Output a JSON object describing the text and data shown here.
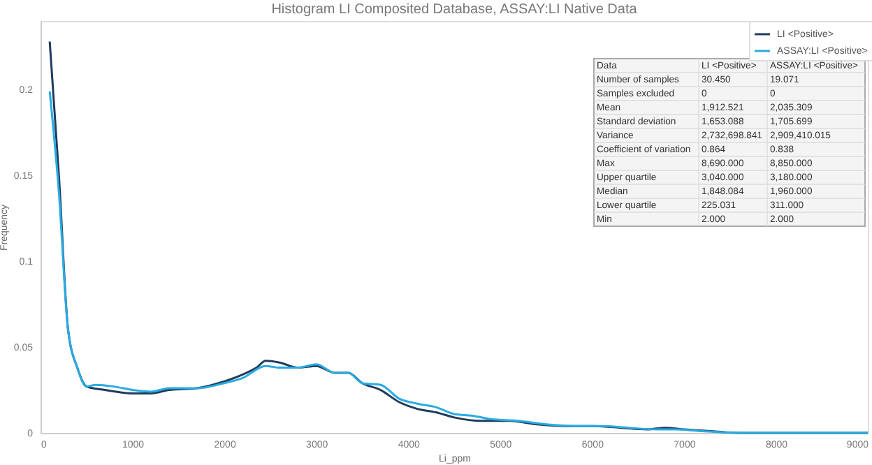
{
  "chart_data": {
    "type": "line",
    "title": "Histogram LI Composited Database, ASSAY:LI Native Data",
    "xlabel": "Li_ppm",
    "ylabel": "Frequency",
    "xlim": [
      0,
      9000
    ],
    "xticks": [
      0,
      1000,
      2000,
      3000,
      4000,
      5000,
      6000,
      7000,
      8000,
      9000
    ],
    "ylim": [
      0,
      0.24
    ],
    "yticks": [
      0,
      0.05,
      0.1,
      0.15,
      0.2
    ],
    "grid": false,
    "legend": "top right",
    "marker": "none",
    "line_style": "solid",
    "series": [
      {
        "name": "LI <Positive>",
        "color": "#1f3b5c",
        "x": [
          100,
          200,
          300,
          400,
          500,
          700,
          1000,
          1200,
          1400,
          1700,
          2000,
          2200,
          2350,
          2450,
          2600,
          2800,
          3000,
          3200,
          3350,
          3500,
          3700,
          3900,
          4100,
          4300,
          4500,
          4800,
          5100,
          5400,
          5700,
          6000,
          6300,
          6600,
          6800,
          7000,
          7300,
          7600,
          8000,
          9000
        ],
        "values": [
          0.228,
          0.15,
          0.06,
          0.038,
          0.027,
          0.025,
          0.023,
          0.023,
          0.025,
          0.026,
          0.03,
          0.034,
          0.038,
          0.042,
          0.041,
          0.038,
          0.039,
          0.035,
          0.035,
          0.029,
          0.025,
          0.018,
          0.014,
          0.012,
          0.009,
          0.007,
          0.007,
          0.005,
          0.004,
          0.004,
          0.003,
          0.002,
          0.003,
          0.002,
          0.001,
          0,
          0,
          0
        ]
      },
      {
        "name": "ASSAY:LI <Positive>",
        "color": "#29abe2",
        "x": [
          100,
          200,
          300,
          400,
          500,
          600,
          800,
          1000,
          1200,
          1400,
          1700,
          2000,
          2200,
          2450,
          2600,
          2800,
          3000,
          3200,
          3350,
          3500,
          3700,
          3900,
          4100,
          4300,
          4500,
          4700,
          4900,
          5200,
          5500,
          5800,
          6100,
          6400,
          6700,
          6900,
          7200,
          7600,
          8000,
          9000
        ],
        "values": [
          0.199,
          0.14,
          0.06,
          0.038,
          0.027,
          0.028,
          0.027,
          0.025,
          0.024,
          0.026,
          0.026,
          0.029,
          0.032,
          0.039,
          0.038,
          0.038,
          0.04,
          0.035,
          0.035,
          0.029,
          0.028,
          0.02,
          0.017,
          0.015,
          0.011,
          0.01,
          0.008,
          0.007,
          0.005,
          0.004,
          0.004,
          0.003,
          0.002,
          0.002,
          0.001,
          0,
          0,
          0
        ]
      }
    ],
    "annotations": [
      "Data",
      "LI <Positive>",
      "ASSAY:LI <Positive>",
      "Number of samples",
      "30.450",
      "19.071",
      "Samples excluded",
      "0",
      "0",
      "Mean",
      "1,912.521",
      "2,035.309",
      "Standard deviation",
      "1,653.088",
      "1,705.699",
      "Variance",
      "2,732,698.841",
      "2,909,410.015",
      "Coefficient of variation",
      "0.864",
      "0.838",
      "Max",
      "8,690.000",
      "8,850.000",
      "Upper quartile",
      "3,040.000",
      "3,180.000",
      "Median",
      "1,848.084",
      "1,960.000",
      "Lower quartile",
      "225.031",
      "311.000",
      "Min",
      "2.000",
      "2.000"
    ]
  }
}
